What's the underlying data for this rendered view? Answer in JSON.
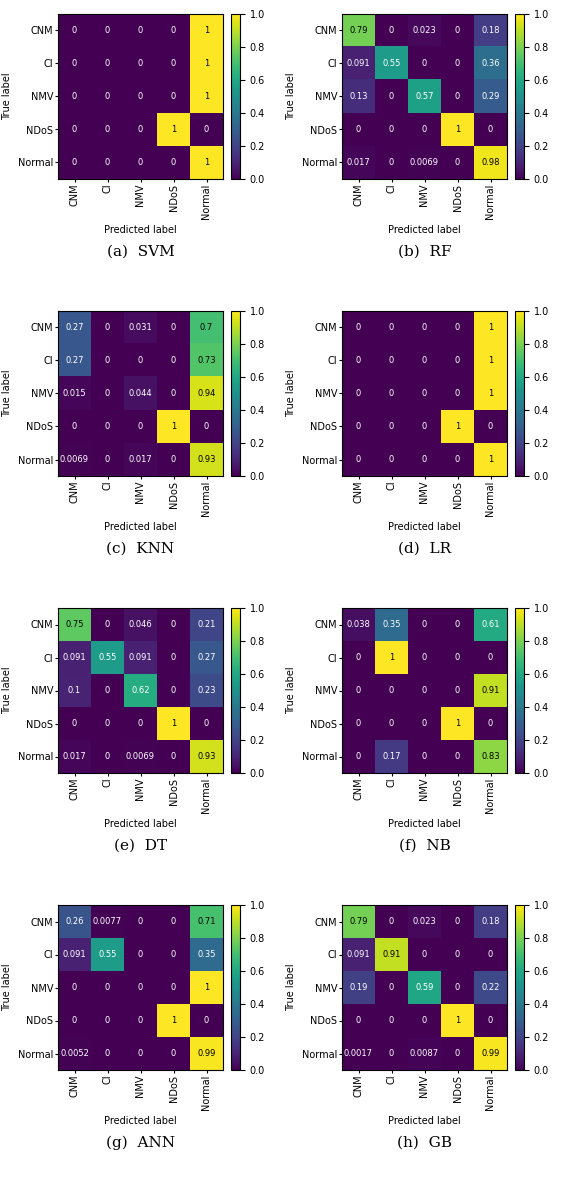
{
  "chart_data": [
    {
      "type": "heatmap",
      "title": "(a)  SVM",
      "xlabel": "Predicted label",
      "ylabel": "True label",
      "categories": [
        "CNM",
        "CI",
        "NMV",
        "NDoS",
        "Normal"
      ],
      "values": [
        [
          0,
          0,
          0,
          0,
          1
        ],
        [
          0,
          0,
          0,
          0,
          1
        ],
        [
          0,
          0,
          0,
          0,
          1
        ],
        [
          0,
          0,
          0,
          1,
          0
        ],
        [
          0,
          0,
          0,
          0,
          1
        ]
      ],
      "colorbar_range": [
        0.0,
        1.0
      ],
      "colorbar_ticks": [
        {
          "value": 0.0,
          "label": "0.0"
        },
        0.2,
        0.4,
        0.6,
        0.8,
        {
          "value": 1.0,
          "label": "1.0"
        }
      ],
      "data_labels": true
    },
    {
      "type": "heatmap",
      "title": "(b)  RF",
      "xlabel": "Predicted label",
      "ylabel": "True label",
      "categories": [
        "CNM",
        "CI",
        "NMV",
        "NDoS",
        "Normal"
      ],
      "values": [
        [
          0.79,
          0,
          0.023,
          0,
          0.18
        ],
        [
          0.091,
          0.55,
          0,
          0,
          0.36
        ],
        [
          0.13,
          0,
          0.57,
          0,
          0.29
        ],
        [
          0,
          0,
          0,
          1,
          0
        ],
        [
          0.017,
          0,
          0.0069,
          0,
          0.98
        ]
      ],
      "colorbar_range": [
        0.0,
        1.0
      ],
      "colorbar_ticks": [
        {
          "value": 0.0,
          "label": "0.0"
        },
        0.2,
        0.4,
        0.6,
        0.8,
        {
          "value": 1.0,
          "label": "1.0"
        }
      ],
      "data_labels": true
    },
    {
      "type": "heatmap",
      "title": "(c)  KNN",
      "xlabel": "Predicted label",
      "ylabel": "True label",
      "categories": [
        "CNM",
        "CI",
        "NMV",
        "NDoS",
        "Normal"
      ],
      "values": [
        [
          0.27,
          0,
          0.031,
          0,
          0.7
        ],
        [
          0.27,
          0,
          0,
          0,
          0.73
        ],
        [
          0.015,
          0,
          0.044,
          0,
          0.94
        ],
        [
          0,
          0,
          0,
          1,
          0
        ],
        [
          0.0069,
          0,
          0.017,
          0,
          0.93
        ]
      ],
      "colorbar_range": [
        0.0,
        1.0
      ],
      "colorbar_ticks": [
        {
          "value": 0.0,
          "label": "0.0"
        },
        0.2,
        0.4,
        0.6,
        0.8,
        {
          "value": 1.0,
          "label": "1.0"
        }
      ],
      "data_labels": true
    },
    {
      "type": "heatmap",
      "title": "(d)  LR",
      "xlabel": "Predicted label",
      "ylabel": "True label",
      "categories": [
        "CNM",
        "CI",
        "NMV",
        "NDoS",
        "Normal"
      ],
      "values": [
        [
          0,
          0,
          0,
          0,
          1
        ],
        [
          0,
          0,
          0,
          0,
          1
        ],
        [
          0,
          0,
          0,
          0,
          1
        ],
        [
          0,
          0,
          0,
          1,
          0
        ],
        [
          0,
          0,
          0,
          0,
          1
        ]
      ],
      "colorbar_range": [
        0.0,
        1.0
      ],
      "colorbar_ticks": [
        {
          "value": 0.0,
          "label": "0.0"
        },
        0.2,
        0.4,
        0.6,
        0.8,
        {
          "value": 1.0,
          "label": "1.0"
        }
      ],
      "data_labels": true
    },
    {
      "type": "heatmap",
      "title": "(e)  DT",
      "xlabel": "Predicted label",
      "ylabel": "True label",
      "categories": [
        "CNM",
        "CI",
        "NMV",
        "NDoS",
        "Normal"
      ],
      "values": [
        [
          0.75,
          0,
          0.046,
          0,
          0.21
        ],
        [
          0.091,
          0.55,
          0.091,
          0,
          0.27
        ],
        [
          0.1,
          0,
          0.62,
          0,
          0.23
        ],
        [
          0,
          0,
          0,
          1,
          0
        ],
        [
          0.017,
          0,
          0.0069,
          0,
          0.93
        ]
      ],
      "colorbar_range": [
        0.0,
        1.0
      ],
      "colorbar_ticks": [
        {
          "value": 0.0,
          "label": "0.0"
        },
        0.2,
        0.4,
        0.6,
        0.8,
        {
          "value": 1.0,
          "label": "1.0"
        }
      ],
      "data_labels": true
    },
    {
      "type": "heatmap",
      "title": "(f)  NB",
      "xlabel": "Predicted label",
      "ylabel": "True label",
      "categories": [
        "CNM",
        "CI",
        "NMV",
        "NDoS",
        "Normal"
      ],
      "values": [
        [
          0.038,
          0.35,
          0,
          0,
          0.61
        ],
        [
          0,
          1,
          0,
          0,
          0
        ],
        [
          0,
          0,
          0,
          0,
          0.91
        ],
        [
          0,
          0,
          0,
          1,
          0
        ],
        [
          0,
          0.17,
          0,
          0,
          0.83
        ]
      ],
      "colorbar_range": [
        0.0,
        1.0
      ],
      "colorbar_ticks": [
        {
          "value": 0.0,
          "label": "0.0"
        },
        0.2,
        0.4,
        0.6,
        0.8,
        {
          "value": 1.0,
          "label": "1.0"
        }
      ],
      "data_labels": true
    },
    {
      "type": "heatmap",
      "title": "(g)  ANN",
      "xlabel": "Predicted label",
      "ylabel": "True label",
      "categories": [
        "CNM",
        "CI",
        "NMV",
        "NDoS",
        "Normal"
      ],
      "values": [
        [
          0.26,
          0.0077,
          0,
          0,
          0.71
        ],
        [
          0.091,
          0.55,
          0,
          0,
          0.35
        ],
        [
          0,
          0,
          0,
          0,
          1
        ],
        [
          0,
          0,
          0,
          1,
          0
        ],
        [
          0.0052,
          0,
          0,
          0,
          0.99
        ]
      ],
      "colorbar_range": [
        0.0,
        1.0
      ],
      "colorbar_ticks": [
        {
          "value": 0.0,
          "label": "0.0"
        },
        0.2,
        0.4,
        0.6,
        0.8,
        {
          "value": 1.0,
          "label": "1.0"
        }
      ],
      "data_labels": true
    },
    {
      "type": "heatmap",
      "title": "(h)  GB",
      "xlabel": "Predicted label",
      "ylabel": "True label",
      "categories": [
        "CNM",
        "CI",
        "NMV",
        "NDoS",
        "Normal"
      ],
      "values": [
        [
          0.79,
          0,
          0.023,
          0,
          0.18
        ],
        [
          0.091,
          0.91,
          0,
          0,
          0
        ],
        [
          0.19,
          0,
          0.59,
          0,
          0.22
        ],
        [
          0,
          0,
          0,
          1,
          0
        ],
        [
          0.0017,
          0,
          0.0087,
          0,
          0.99
        ]
      ],
      "colorbar_range": [
        0.0,
        1.0
      ],
      "colorbar_ticks": [
        {
          "value": 0.0,
          "label": "0.0"
        },
        0.2,
        0.4,
        0.6,
        0.8,
        {
          "value": 1.0,
          "label": "1.0"
        }
      ],
      "data_labels": true
    }
  ]
}
